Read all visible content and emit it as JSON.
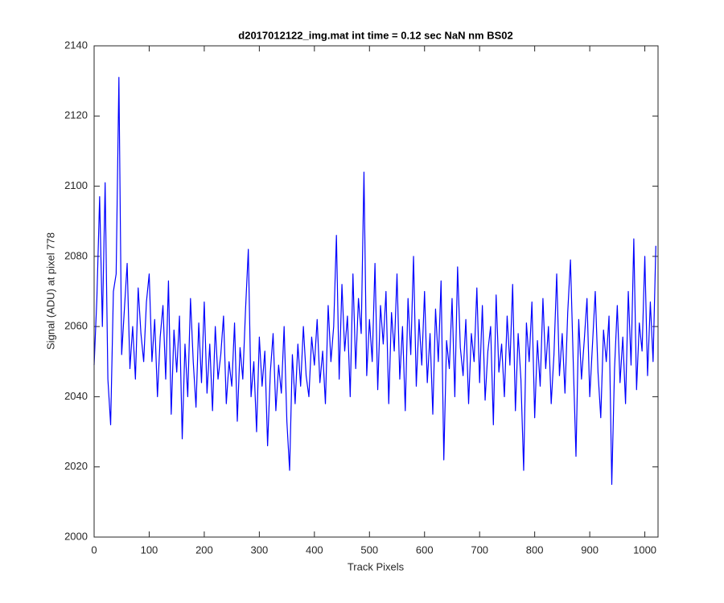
{
  "chart_data": {
    "type": "line",
    "title": "d2017012122_img.mat int time = 0.12 sec  NaN nm BS02",
    "x_label": "Track Pixels",
    "y_label": "Signal (ADU) at pixel 778",
    "xlim": [
      0,
      1024
    ],
    "ylim": [
      2000,
      2140
    ],
    "xticks": [
      0,
      100,
      200,
      300,
      400,
      500,
      600,
      700,
      800,
      900,
      1000
    ],
    "yticks": [
      2000,
      2020,
      2040,
      2060,
      2080,
      2100,
      2120,
      2140
    ],
    "grid": false,
    "x": [
      0,
      5,
      10,
      15,
      20,
      25,
      30,
      35,
      40,
      45,
      50,
      55,
      60,
      65,
      70,
      75,
      80,
      85,
      90,
      95,
      100,
      105,
      110,
      115,
      120,
      125,
      130,
      135,
      140,
      145,
      150,
      155,
      160,
      165,
      170,
      175,
      180,
      185,
      190,
      195,
      200,
      205,
      210,
      215,
      220,
      225,
      230,
      235,
      240,
      245,
      250,
      255,
      260,
      265,
      270,
      275,
      280,
      285,
      290,
      295,
      300,
      305,
      310,
      315,
      320,
      325,
      330,
      335,
      340,
      345,
      350,
      355,
      360,
      365,
      370,
      375,
      380,
      385,
      390,
      395,
      400,
      405,
      410,
      415,
      420,
      425,
      430,
      435,
      440,
      445,
      450,
      455,
      460,
      465,
      470,
      475,
      480,
      485,
      490,
      495,
      500,
      505,
      510,
      515,
      520,
      525,
      530,
      535,
      540,
      545,
      550,
      555,
      560,
      565,
      570,
      575,
      580,
      585,
      590,
      595,
      600,
      605,
      610,
      615,
      620,
      625,
      630,
      635,
      640,
      645,
      650,
      655,
      660,
      665,
      670,
      675,
      680,
      685,
      690,
      695,
      700,
      705,
      710,
      715,
      720,
      725,
      730,
      735,
      740,
      745,
      750,
      755,
      760,
      765,
      770,
      775,
      780,
      785,
      790,
      795,
      800,
      805,
      810,
      815,
      820,
      825,
      830,
      835,
      840,
      845,
      850,
      855,
      860,
      865,
      870,
      875,
      880,
      885,
      890,
      895,
      900,
      905,
      910,
      915,
      920,
      925,
      930,
      935,
      940,
      945,
      950,
      955,
      960,
      965,
      970,
      975,
      980,
      985,
      990,
      995,
      1000,
      1005,
      1010,
      1015,
      1020
    ],
    "series": [
      {
        "color": "#0000ff",
        "values": [
          2049,
          2068,
          2097,
          2060,
          2101,
          2045,
          2032,
          2070,
          2075,
          2131,
          2052,
          2065,
          2078,
          2048,
          2060,
          2045,
          2071,
          2058,
          2050,
          2067,
          2075,
          2050,
          2062,
          2040,
          2057,
          2066,
          2045,
          2073,
          2035,
          2059,
          2047,
          2063,
          2028,
          2055,
          2040,
          2068,
          2050,
          2037,
          2061,
          2044,
          2067,
          2041,
          2055,
          2036,
          2060,
          2045,
          2052,
          2063,
          2038,
          2050,
          2043,
          2061,
          2033,
          2054,
          2045,
          2065,
          2082,
          2040,
          2050,
          2030,
          2057,
          2043,
          2053,
          2026,
          2047,
          2058,
          2036,
          2049,
          2041,
          2060,
          2033,
          2019,
          2052,
          2038,
          2055,
          2043,
          2060,
          2046,
          2040,
          2057,
          2049,
          2062,
          2044,
          2053,
          2038,
          2066,
          2050,
          2060,
          2086,
          2045,
          2072,
          2053,
          2063,
          2040,
          2075,
          2048,
          2068,
          2058,
          2104,
          2046,
          2062,
          2050,
          2078,
          2042,
          2066,
          2055,
          2070,
          2038,
          2064,
          2053,
          2075,
          2045,
          2060,
          2036,
          2068,
          2052,
          2080,
          2043,
          2062,
          2049,
          2070,
          2044,
          2058,
          2035,
          2065,
          2050,
          2073,
          2022,
          2056,
          2048,
          2068,
          2040,
          2077,
          2054,
          2046,
          2062,
          2038,
          2058,
          2050,
          2071,
          2044,
          2066,
          2039,
          2053,
          2060,
          2032,
          2069,
          2047,
          2055,
          2040,
          2063,
          2049,
          2072,
          2036,
          2058,
          2045,
          2019,
          2061,
          2050,
          2067,
          2034,
          2056,
          2043,
          2068,
          2048,
          2060,
          2038,
          2052,
          2075,
          2046,
          2058,
          2041,
          2064,
          2079,
          2050,
          2023,
          2062,
          2045,
          2056,
          2068,
          2040,
          2055,
          2070,
          2047,
          2034,
          2059,
          2050,
          2063,
          2015,
          2048,
          2066,
          2044,
          2057,
          2038,
          2070,
          2049,
          2085,
          2042,
          2061,
          2053,
          2080,
          2046,
          2067,
          2050,
          2083
        ]
      }
    ]
  }
}
